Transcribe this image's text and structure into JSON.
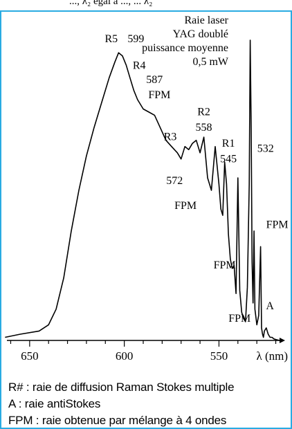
{
  "header_fragment": "..., λ₂ egal à ..., ... λ₂",
  "chart_data": {
    "type": "line",
    "title": "",
    "xlabel": "λ (nm)",
    "ylabel": "",
    "x_reversed": true,
    "xlim": [
      662,
      518
    ],
    "x_ticks": [
      650,
      600,
      550
    ],
    "x_tick_labels": [
      "650",
      "600",
      "550"
    ],
    "ylim": [
      0,
      1
    ],
    "grid": false,
    "series": [
      {
        "x": [
          663,
          655,
          645,
          640,
          636,
          632,
          628,
          624,
          620,
          616,
          612,
          608,
          605,
          603,
          601,
          599,
          597,
          595,
          593,
          590,
          587,
          584,
          581,
          578,
          575,
          572,
          570,
          568,
          566,
          564,
          562,
          560,
          558,
          556,
          554,
          552,
          551,
          550,
          549,
          548,
          547,
          546,
          545,
          544,
          543,
          542,
          541,
          540,
          539,
          538,
          537,
          536,
          535,
          534,
          533.5,
          533,
          532.5,
          532,
          531.5,
          531,
          530,
          529,
          528,
          527.5,
          527,
          526.5,
          526,
          525,
          524,
          523,
          522,
          521,
          520,
          518
        ],
        "y": [
          0.01,
          0.02,
          0.03,
          0.05,
          0.1,
          0.2,
          0.35,
          0.48,
          0.59,
          0.68,
          0.76,
          0.84,
          0.89,
          0.92,
          0.91,
          0.88,
          0.84,
          0.8,
          0.77,
          0.74,
          0.73,
          0.72,
          0.68,
          0.64,
          0.62,
          0.6,
          0.58,
          0.62,
          0.61,
          0.63,
          0.64,
          0.6,
          0.65,
          0.52,
          0.48,
          0.62,
          0.56,
          0.5,
          0.42,
          0.4,
          0.57,
          0.5,
          0.34,
          0.26,
          0.23,
          0.24,
          0.15,
          0.52,
          0.16,
          0.09,
          0.07,
          0.06,
          0.17,
          0.5,
          0.96,
          0.68,
          0.25,
          0.12,
          0.35,
          0.1,
          0.05,
          0.08,
          0.3,
          0.04,
          0.02,
          0.01,
          0.03,
          0.04,
          0.02,
          0.01,
          0.01,
          0.005,
          0.003,
          0.0
        ]
      }
    ],
    "annotations": [
      {
        "text": "Raie laser",
        "x": 533,
        "y": 1.0
      },
      {
        "text": "YAG doublé",
        "x": 533,
        "y": 1.0
      },
      {
        "text": "puissance moyenne",
        "x": 533,
        "y": 1.0
      },
      {
        "text": "0,5 mW",
        "x": 533,
        "y": 1.0
      },
      {
        "text": "532",
        "x": 532,
        "y": 0.74
      },
      {
        "text": "R5",
        "x": 602,
        "y": 0.94
      },
      {
        "text": "599",
        "x": 599,
        "y": 0.94
      },
      {
        "text": "R4",
        "x": 597,
        "y": 0.86
      },
      {
        "text": "587",
        "x": 587,
        "y": 0.81
      },
      {
        "text": "FPM",
        "x": 580,
        "y": 0.77
      },
      {
        "text": "R3",
        "x": 575,
        "y": 0.64
      },
      {
        "text": "R2",
        "x": 558,
        "y": 0.72
      },
      {
        "text": "558",
        "x": 558,
        "y": 0.67
      },
      {
        "text": "R1",
        "x": 545,
        "y": 0.62
      },
      {
        "text": "545",
        "x": 545,
        "y": 0.57
      },
      {
        "text": "572",
        "x": 572,
        "y": 0.5
      },
      {
        "text": "FPM",
        "x": 564,
        "y": 0.42
      },
      {
        "text": "FPM",
        "x": 547,
        "y": 0.23
      },
      {
        "text": "FPM",
        "x": 528,
        "y": 0.36
      },
      {
        "text": "FPM",
        "x": 534,
        "y": 0.06
      },
      {
        "text": "A",
        "x": 526,
        "y": 0.1
      }
    ]
  },
  "caption": {
    "line1": "R# : raie de diffusion Raman Stokes multiple",
    "line2": "A : raie antiStokes",
    "line3": "FPM : raie obtenue par mélange à 4 ondes"
  },
  "colors": {
    "frame": "#29abe2",
    "ink": "#000000"
  }
}
